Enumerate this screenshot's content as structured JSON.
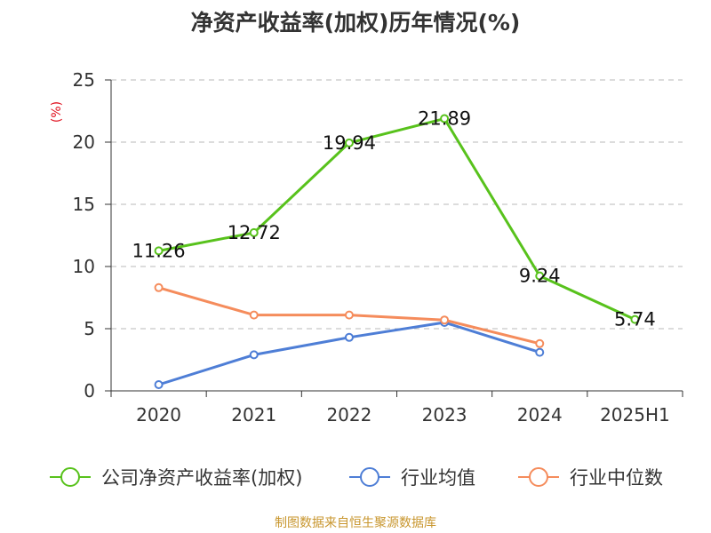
{
  "chart_data": {
    "type": "line",
    "title": "净资产收益率(加权)历年情况(%)",
    "ylabel": "(%)",
    "xlabel": "",
    "ylim": [
      0,
      25
    ],
    "yticks": [
      0,
      5,
      10,
      15,
      20,
      25
    ],
    "grid": true,
    "legend_position": "bottom",
    "categories": [
      "2020",
      "2021",
      "2022",
      "2023",
      "2024",
      "2025H1"
    ],
    "series": [
      {
        "name": "公司净资产收益率(加权)",
        "color": "#58c21c",
        "values": [
          11.26,
          12.72,
          19.94,
          21.89,
          9.24,
          5.74
        ],
        "labels": [
          "11.26",
          "12.72",
          "19.94",
          "21.89",
          "9.24",
          "5.74"
        ]
      },
      {
        "name": "行业均值",
        "color": "#4e7ed6",
        "values": [
          0.5,
          2.9,
          4.3,
          5.5,
          3.1,
          null
        ]
      },
      {
        "name": "行业中位数",
        "color": "#f58c5c",
        "values": [
          8.3,
          6.1,
          6.1,
          5.7,
          3.8,
          null
        ]
      }
    ]
  },
  "source": "制图数据来自恒生聚源数据库"
}
